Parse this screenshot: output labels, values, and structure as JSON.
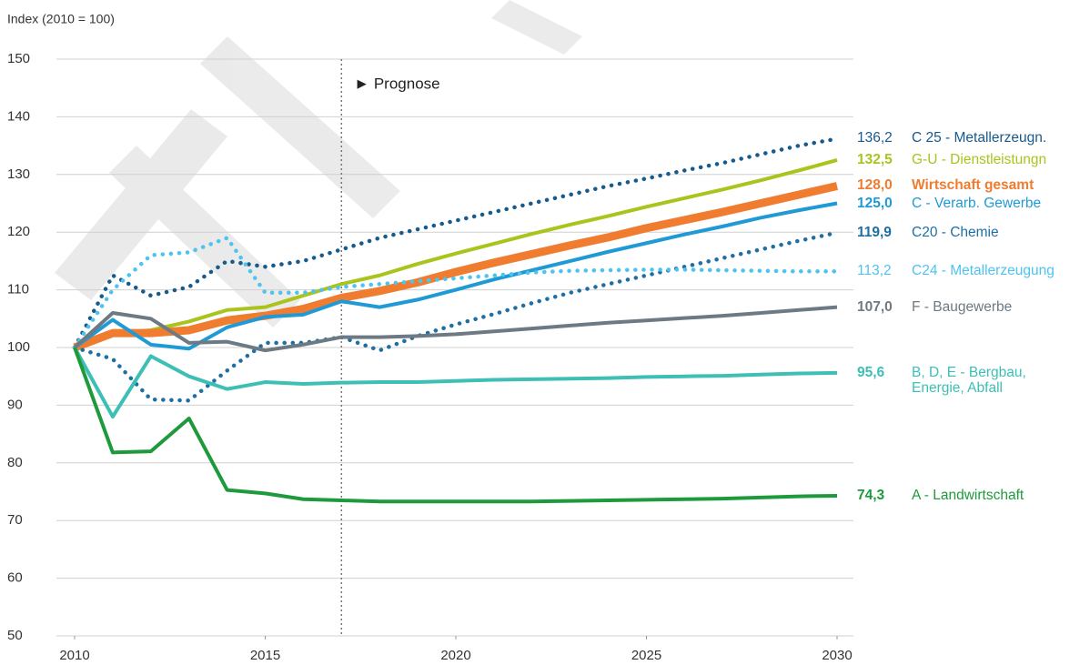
{
  "chart_data": {
    "type": "line",
    "y_axis_label": "Index (2010 = 100)",
    "x": [
      2010,
      2011,
      2012,
      2013,
      2014,
      2015,
      2016,
      2017,
      2018,
      2019,
      2020,
      2021,
      2022,
      2023,
      2024,
      2025,
      2026,
      2027,
      2028,
      2029,
      2030
    ],
    "xlim": [
      2010,
      2030
    ],
    "xticks": [
      2010,
      2015,
      2020,
      2025,
      2030
    ],
    "ylim": [
      50,
      150
    ],
    "yticks": [
      50,
      60,
      70,
      80,
      90,
      100,
      110,
      120,
      130,
      140,
      150
    ],
    "grid": true,
    "annotation": {
      "x": 2017,
      "text": "► Prognose"
    },
    "series": [
      {
        "name": "C 25 - Metallerzeugn.",
        "color": "#185a8c",
        "style": "dotted",
        "width": 4,
        "bold": false,
        "values": [
          100,
          112.5,
          109,
          110.5,
          115,
          114,
          115,
          117,
          119,
          120.5,
          122,
          123.5,
          125,
          126.5,
          128,
          129.3,
          130.7,
          132,
          133.5,
          135,
          136.2
        ],
        "value_labels": {
          "20": "136,2"
        }
      },
      {
        "name": "G-U - Dienstleistungn",
        "color": "#a9c41c",
        "style": "solid",
        "width": 4,
        "bold": true,
        "values": [
          100,
          102.5,
          103,
          104.5,
          106.5,
          107,
          109,
          111,
          112.5,
          114.5,
          116.3,
          118,
          119.7,
          121.3,
          122.8,
          124.4,
          125.9,
          127.4,
          129,
          130.7,
          132.5
        ],
        "value_labels": {
          "20": "132,5"
        }
      },
      {
        "name": "Wirtschaft gesamt",
        "color": "#f07c30",
        "style": "solid",
        "width": 9,
        "bold": true,
        "name_bold": true,
        "values": [
          100,
          102.5,
          102.5,
          103,
          104.7,
          105.5,
          106.7,
          108.6,
          109.8,
          111.3,
          113.1,
          114.7,
          116.2,
          117.7,
          119.1,
          120.7,
          122.1,
          123.5,
          125,
          126.5,
          128.0
        ],
        "value_labels": {
          "20": "128,0"
        }
      },
      {
        "name": "C - Verarb. Gewerbe",
        "color": "#1f9ad6",
        "style": "solid",
        "width": 4,
        "bold": true,
        "values": [
          100,
          104.8,
          100.5,
          99.8,
          103.5,
          105.3,
          105.7,
          108,
          107,
          108.3,
          110,
          111.8,
          113.4,
          115,
          116.6,
          118.1,
          119.6,
          121,
          122.5,
          123.8,
          125.0
        ],
        "value_labels": {
          "20": "125,0"
        }
      },
      {
        "name": "C20 - Chemie",
        "color": "#1f6fa3",
        "style": "dotted",
        "width": 4,
        "bold": true,
        "values": [
          100,
          98,
          91,
          90.8,
          96,
          100.8,
          100.8,
          101.8,
          99.5,
          102,
          104,
          105.8,
          107.7,
          109.5,
          111,
          112.5,
          114,
          115.5,
          117,
          118.5,
          119.9
        ],
        "value_labels": {
          "20": "119,9"
        }
      },
      {
        "name": "C24 - Metallerzeugung",
        "color": "#4ec3f0",
        "style": "dotted",
        "width": 4,
        "bold": false,
        "values": [
          100,
          110,
          116,
          116.5,
          119,
          109.5,
          109.5,
          110.5,
          111,
          111.5,
          112,
          112.5,
          113,
          113.3,
          113.4,
          113.5,
          113.5,
          113.4,
          113.3,
          113.2,
          113.2
        ],
        "value_labels": {
          "20": "113,2"
        }
      },
      {
        "name": "F - Baugewerbe",
        "color": "#6d7a83",
        "style": "solid",
        "width": 4,
        "bold": true,
        "values": [
          100,
          106,
          105,
          100.8,
          101,
          99.5,
          100.5,
          101.8,
          101.8,
          102,
          102.3,
          102.8,
          103.3,
          103.8,
          104.3,
          104.7,
          105.1,
          105.5,
          106,
          106.5,
          107.0
        ],
        "value_labels": {
          "20": "107,0"
        }
      },
      {
        "name": "B, D, E - Bergbau,\nEnergie, Abfall",
        "color": "#3dbfb5",
        "style": "solid",
        "width": 4,
        "bold": true,
        "values": [
          100,
          88,
          98.5,
          95,
          92.8,
          94,
          93.7,
          93.9,
          94,
          94,
          94.2,
          94.4,
          94.5,
          94.6,
          94.7,
          94.9,
          95.0,
          95.1,
          95.3,
          95.5,
          95.6
        ],
        "value_labels": {
          "20": "95,6"
        }
      },
      {
        "name": "A - Landwirtschaft",
        "color": "#1e9a3c",
        "style": "solid",
        "width": 4,
        "bold": true,
        "values": [
          100,
          81.8,
          82,
          87.7,
          75.3,
          74.7,
          73.7,
          73.5,
          73.3,
          73.3,
          73.3,
          73.3,
          73.3,
          73.4,
          73.5,
          73.6,
          73.7,
          73.8,
          74,
          74.2,
          74.3
        ],
        "value_labels": {
          "20": "74,3"
        }
      }
    ]
  }
}
